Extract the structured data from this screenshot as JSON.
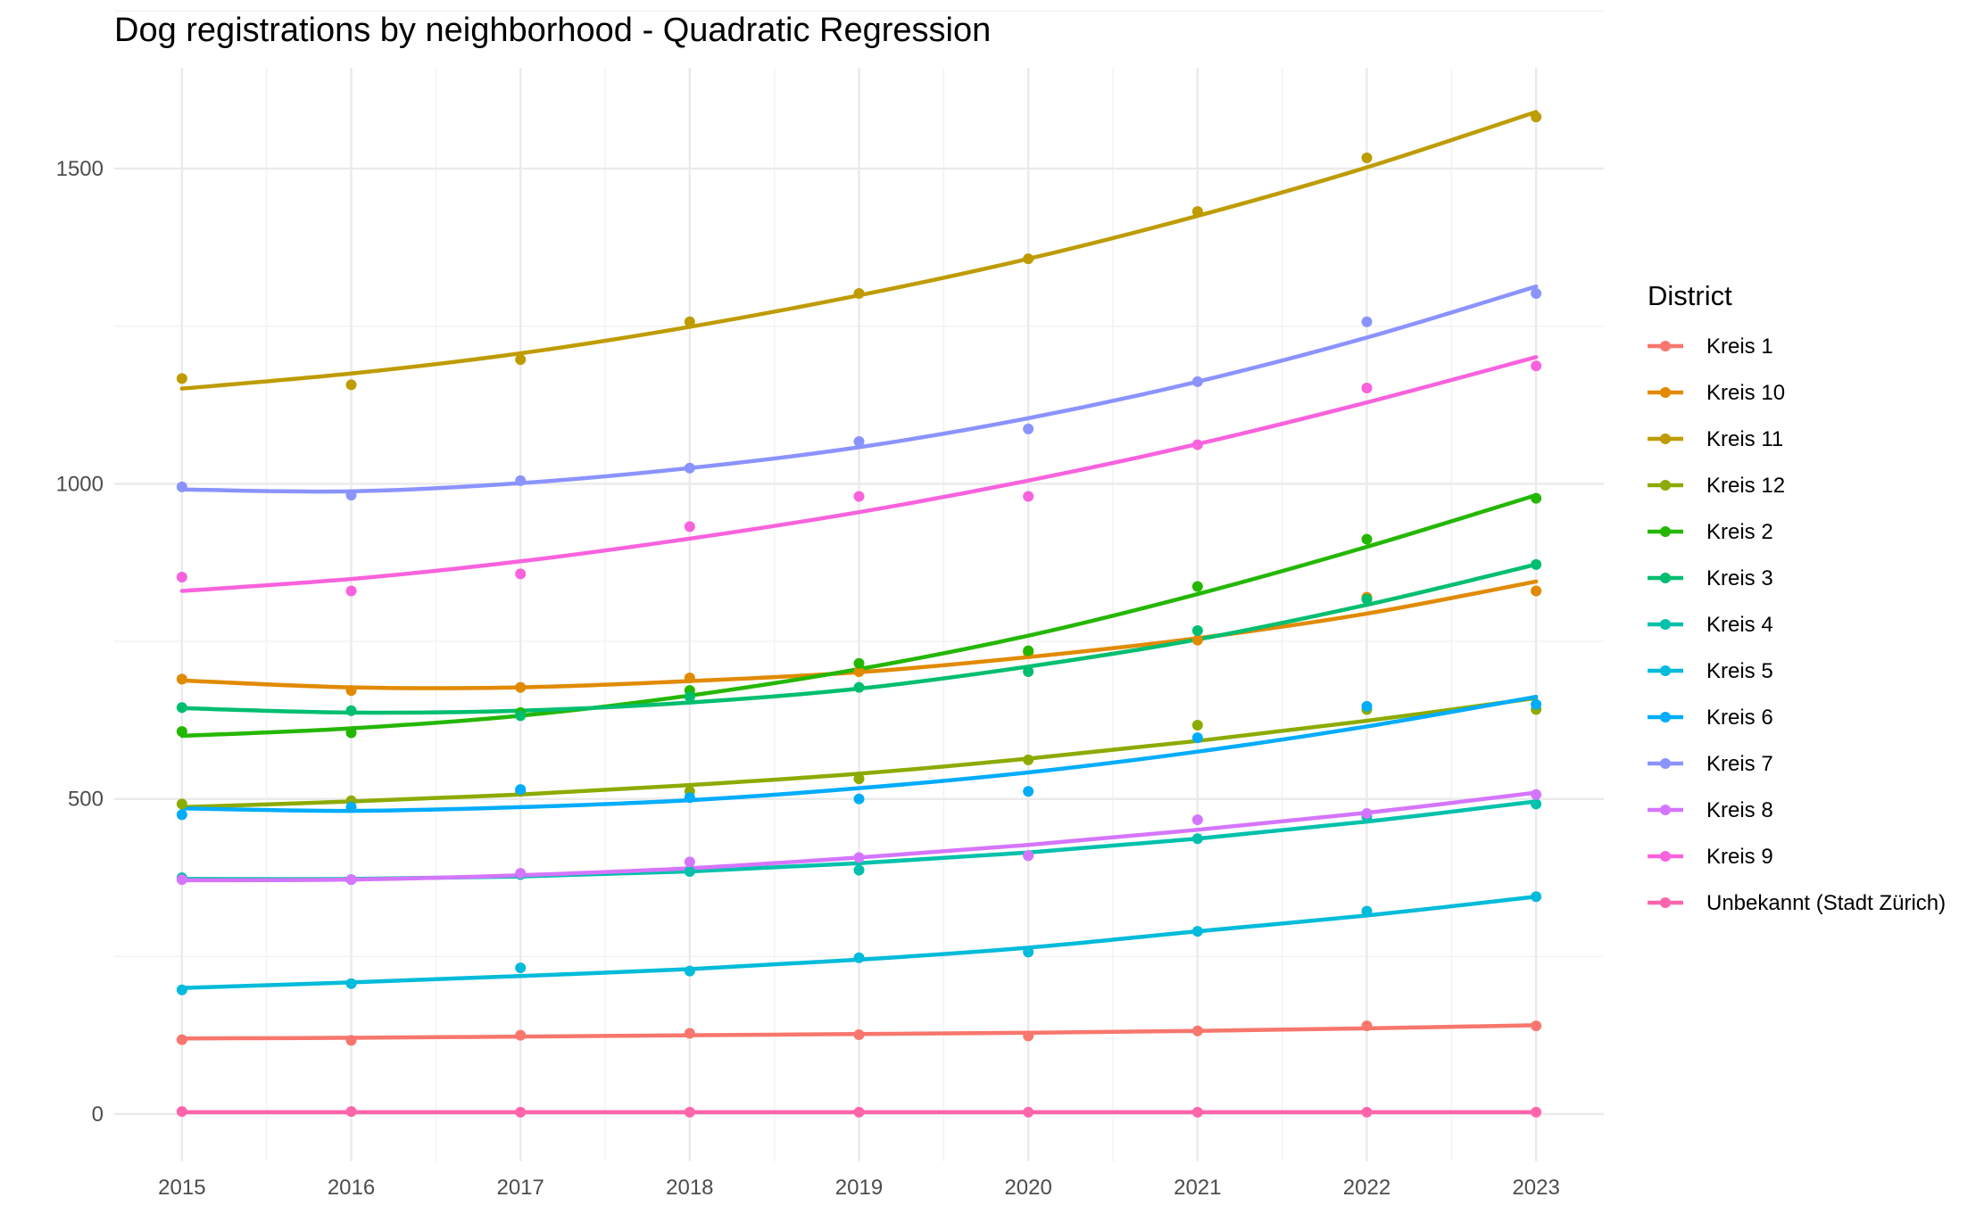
{
  "chart_data": {
    "type": "line",
    "title": "Dog registrations by neighborhood - Quadratic Regression",
    "xlabel": "",
    "ylabel": "",
    "x": [
      2015,
      2016,
      2017,
      2018,
      2019,
      2020,
      2021,
      2022,
      2023
    ],
    "x_ticks": [
      "2015",
      "2016",
      "2017",
      "2018",
      "2019",
      "2020",
      "2021",
      "2022",
      "2023"
    ],
    "y_ticks": [
      "0",
      "500",
      "1000",
      "1500"
    ],
    "ylim": [
      -75,
      1660
    ],
    "grid": true,
    "legend_title": "District",
    "legend_position": "right",
    "series": [
      {
        "name": "Kreis 1",
        "color": "#F8766D",
        "points": [
          118,
          117,
          125,
          128,
          126,
          124,
          132,
          140,
          140
        ],
        "fit": [
          120,
          121,
          123,
          125,
          127,
          129,
          132,
          136,
          141
        ]
      },
      {
        "name": "Kreis 10",
        "color": "#E18A00",
        "points": [
          690,
          672,
          677,
          692,
          702,
          732,
          752,
          820,
          830
        ],
        "fit": [
          688,
          677,
          677,
          687,
          701,
          725,
          755,
          794,
          845
        ]
      },
      {
        "name": "Kreis 11",
        "color": "#BE9C00",
        "points": [
          1167,
          1157,
          1197,
          1257,
          1302,
          1357,
          1432,
          1517,
          1582
        ],
        "fit": [
          1151,
          1175,
          1207,
          1249,
          1299,
          1357,
          1425,
          1502,
          1590
        ]
      },
      {
        "name": "Kreis 12",
        "color": "#8CAB00",
        "points": [
          492,
          497,
          512,
          512,
          532,
          562,
          617,
          642,
          642
        ],
        "fit": [
          487,
          496,
          507,
          522,
          540,
          564,
          592,
          624,
          660
        ]
      },
      {
        "name": "Kreis 2",
        "color": "#24B700",
        "points": [
          607,
          605,
          637,
          672,
          715,
          735,
          837,
          912,
          977
        ],
        "fit": [
          600,
          612,
          632,
          664,
          706,
          759,
          825,
          900,
          982
        ]
      },
      {
        "name": "Kreis 3",
        "color": "#00BE70",
        "points": [
          645,
          640,
          632,
          662,
          677,
          702,
          767,
          817,
          872
        ],
        "fit": [
          644,
          637,
          640,
          653,
          675,
          710,
          753,
          808,
          872
        ]
      },
      {
        "name": "Kreis 4",
        "color": "#00C1AB",
        "points": [
          375,
          372,
          380,
          385,
          387,
          410,
          437,
          472,
          492
        ],
        "fit": [
          373,
          373,
          377,
          385,
          398,
          415,
          437,
          464,
          496
        ]
      },
      {
        "name": "Kreis 5",
        "color": "#00BBDA",
        "points": [
          197,
          207,
          232,
          227,
          248,
          257,
          290,
          322,
          345
        ],
        "fit": [
          200,
          209,
          219,
          230,
          245,
          264,
          290,
          315,
          345
        ]
      },
      {
        "name": "Kreis 6",
        "color": "#00ACFC",
        "points": [
          475,
          487,
          515,
          502,
          500,
          512,
          597,
          647,
          650
        ],
        "fit": [
          485,
          481,
          487,
          498,
          517,
          542,
          575,
          615,
          662
        ]
      },
      {
        "name": "Kreis 7",
        "color": "#8B93FF",
        "points": [
          995,
          982,
          1005,
          1025,
          1067,
          1087,
          1162,
          1257,
          1302
        ],
        "fit": [
          991,
          988,
          1001,
          1025,
          1058,
          1104,
          1162,
          1232,
          1313
        ]
      },
      {
        "name": "Kreis 8",
        "color": "#D575FE",
        "points": [
          372,
          372,
          382,
          400,
          407,
          410,
          467,
          477,
          507
        ],
        "fit": [
          371,
          372,
          379,
          390,
          407,
          427,
          451,
          478,
          510
        ]
      },
      {
        "name": "Kreis 9",
        "color": "#F962DD",
        "points": [
          852,
          830,
          857,
          932,
          980,
          980,
          1062,
          1152,
          1187
        ],
        "fit": [
          830,
          849,
          877,
          913,
          955,
          1005,
          1063,
          1129,
          1201
        ]
      },
      {
        "name": "Unbekannt (Stadt Zürich)",
        "color": "#FF65AC",
        "points": [
          4,
          4,
          3,
          3,
          3,
          3,
          3,
          3,
          3
        ],
        "fit": [
          3,
          3,
          3,
          3,
          3,
          3,
          3,
          3,
          3
        ]
      }
    ]
  }
}
